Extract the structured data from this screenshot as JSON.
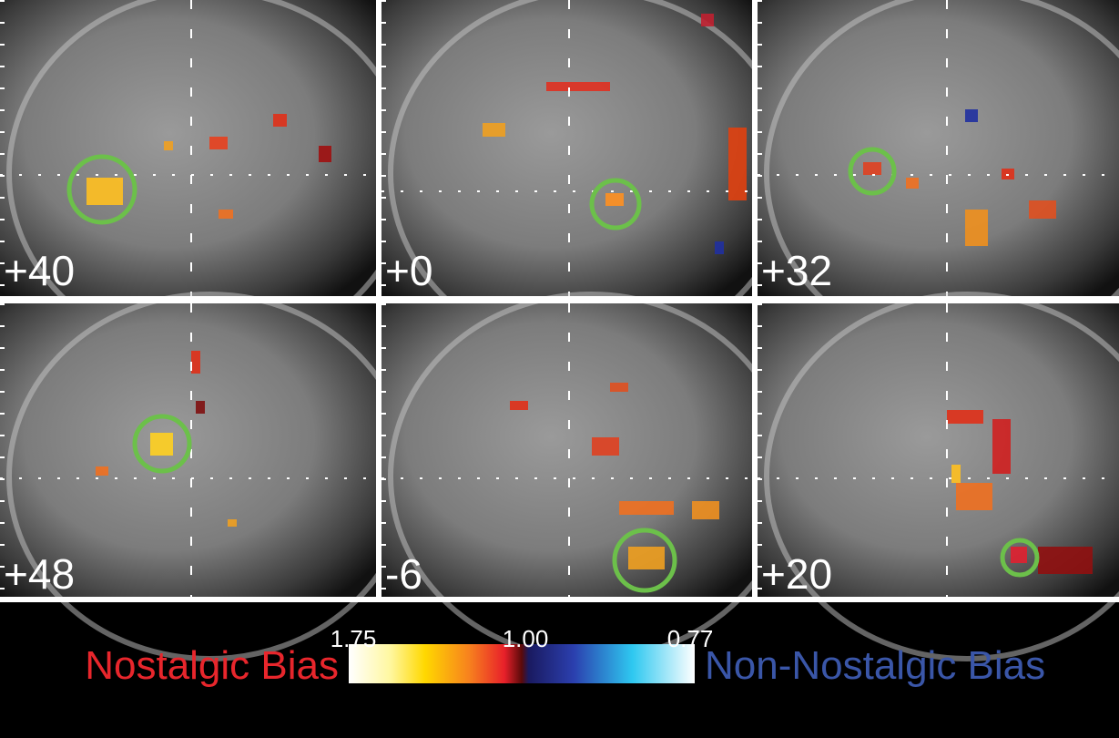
{
  "panels": [
    {
      "label": "+40"
    },
    {
      "label": "+0"
    },
    {
      "label": "+32"
    },
    {
      "label": "+48"
    },
    {
      "label": "-6"
    },
    {
      "label": "+20"
    }
  ],
  "colorbar": {
    "ticks": [
      "1.75",
      "1.00",
      "0.77"
    ],
    "left_label": "Nostalgic Bias",
    "right_label": "Non-Nostalgic Bias"
  }
}
